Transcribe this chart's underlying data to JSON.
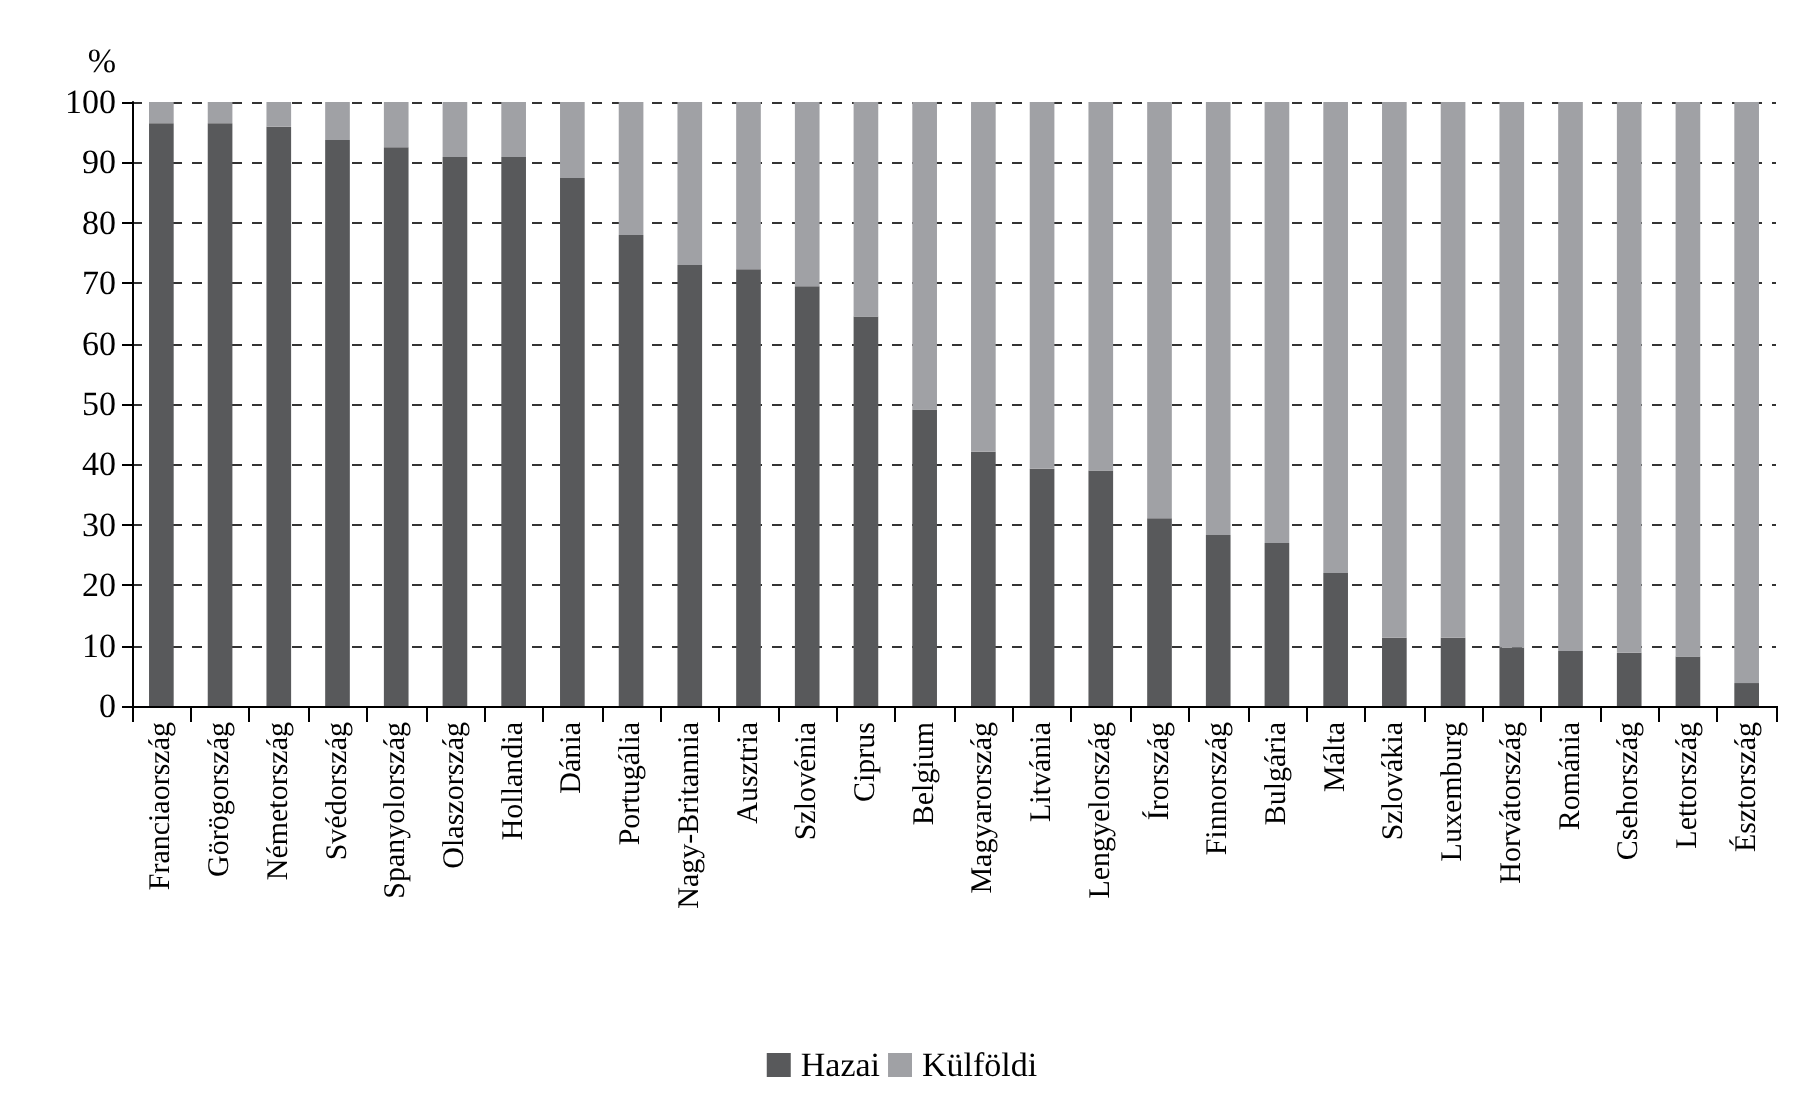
{
  "chart_data": {
    "type": "bar",
    "stacked": true,
    "ylabel": "%",
    "categories": [
      "Franciaország",
      "Görögország",
      "Németország",
      "Svédország",
      "Spanyolország",
      "Olaszország",
      "Hollandia",
      "Dánia",
      "Portugália",
      "Nagy-Britannia",
      "Ausztria",
      "Szlovénia",
      "Ciprus",
      "Belgium",
      "Magyarország",
      "Litvánia",
      "Lengyelország",
      "Írország",
      "Finnország",
      "Bulgária",
      "Málta",
      "Szlovákia",
      "Luxemburg",
      "Horvátország",
      "Románia",
      "Csehország",
      "Lettország",
      "Észtország"
    ],
    "series": [
      {
        "name": "Hazai",
        "color": "#58595b",
        "values": [
          96.5,
          96.5,
          95.9,
          93.7,
          92.5,
          90.9,
          90.9,
          87.4,
          78.0,
          73.0,
          72.3,
          69.5,
          64.5,
          49.1,
          42.1,
          39.3,
          39.0,
          31.1,
          28.3,
          27.0,
          22.0,
          11.3,
          11.3,
          9.7,
          9.1,
          8.8,
          8.2,
          3.8
        ]
      },
      {
        "name": "Külföldi",
        "color": "#a0a1a5",
        "values": [
          3.5,
          3.5,
          4.1,
          6.3,
          7.5,
          9.1,
          9.1,
          12.6,
          22.0,
          27.0,
          27.7,
          30.5,
          35.5,
          50.9,
          57.9,
          60.7,
          61.0,
          68.9,
          71.7,
          73.0,
          78.0,
          88.7,
          88.7,
          90.3,
          90.9,
          91.2,
          91.8,
          96.2
        ]
      }
    ],
    "ylim": [
      0,
      100
    ],
    "yticks": [
      0,
      10,
      20,
      30,
      40,
      50,
      60,
      70,
      80,
      90,
      100
    ],
    "grid": "y",
    "legend": "bottom"
  }
}
